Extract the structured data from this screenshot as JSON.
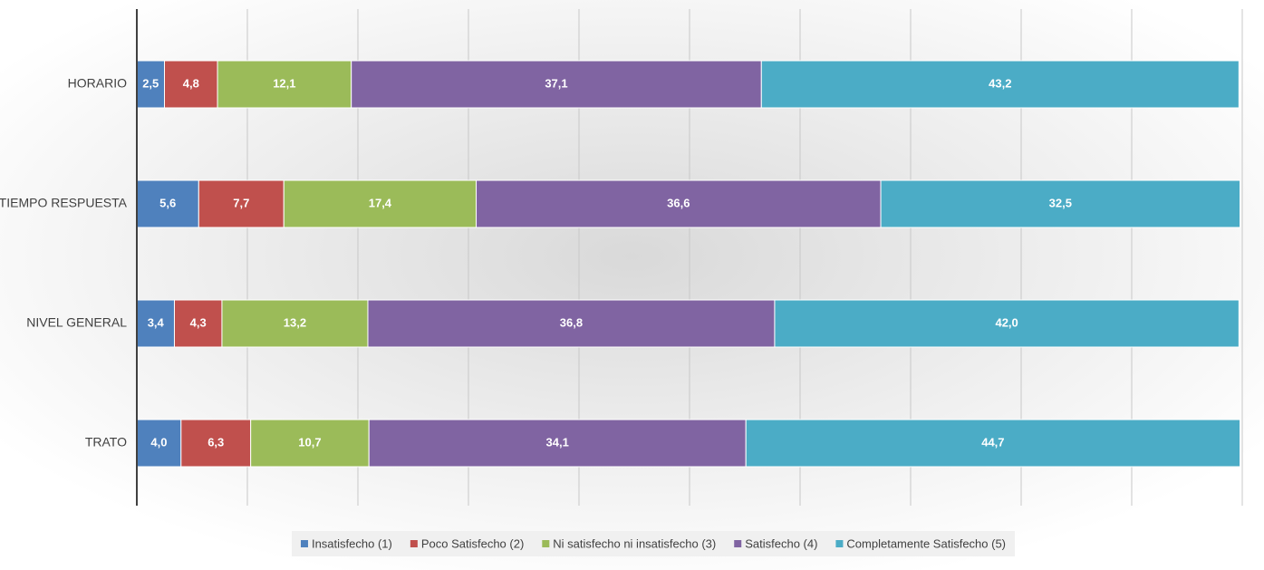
{
  "chart_data": {
    "type": "stacked-bar-horizontal",
    "categories": [
      "HORARIO",
      "TIEMPO RESPUESTA",
      "NIVEL GENERAL",
      "TRATO"
    ],
    "series": [
      {
        "name": "Insatisfecho (1)",
        "color": "#4f81bd",
        "values": [
          2.5,
          5.6,
          3.4,
          4.0
        ],
        "value_labels": [
          "2,5",
          "5,6",
          "3,4",
          "4,0"
        ]
      },
      {
        "name": "Poco Satisfecho (2)",
        "color": "#c0504d",
        "values": [
          4.8,
          7.7,
          4.3,
          6.3
        ],
        "value_labels": [
          "4,8",
          "7,7",
          "4,3",
          "6,3"
        ]
      },
      {
        "name": "Ni satisfecho ni insatisfecho (3)",
        "color": "#9bbb59",
        "values": [
          12.1,
          17.4,
          13.2,
          10.7
        ],
        "value_labels": [
          "12,1",
          "17,4",
          "13,2",
          "10,7"
        ]
      },
      {
        "name": "Satisfecho (4)",
        "color": "#8064a2",
        "values": [
          37.1,
          36.6,
          36.8,
          34.1
        ],
        "value_labels": [
          "37,1",
          "36,6",
          "36,8",
          "34,1"
        ]
      },
      {
        "name": "Completamente Satisfecho (5)",
        "color": "#4bacc6",
        "values": [
          43.2,
          32.5,
          42.0,
          44.7
        ],
        "value_labels": [
          "43,2",
          "32,5",
          "42,0",
          "44,7"
        ]
      }
    ],
    "xlim": [
      0,
      100
    ],
    "xticks": [
      0,
      10,
      20,
      30,
      40,
      50,
      60,
      70,
      80,
      90,
      100
    ],
    "grid": true,
    "legend": "bottom"
  }
}
